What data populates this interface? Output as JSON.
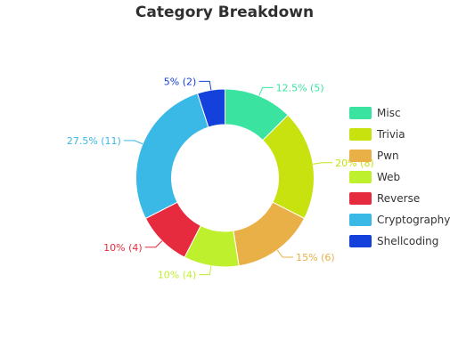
{
  "chart_data": {
    "type": "pie",
    "title": "Category Breakdown",
    "hole": 0.6,
    "slices": [
      {
        "label": "Misc",
        "value": 5,
        "percent": "12.5%",
        "color": "#3ae4a0"
      },
      {
        "label": "Trivia",
        "value": 8,
        "percent": "20%",
        "color": "#c8e210"
      },
      {
        "label": "Pwn",
        "value": 6,
        "percent": "15%",
        "color": "#e8b046"
      },
      {
        "label": "Web",
        "value": 4,
        "percent": "10%",
        "color": "#bff02e"
      },
      {
        "label": "Reverse",
        "value": 4,
        "percent": "10%",
        "color": "#e62b3e"
      },
      {
        "label": "Cryptography",
        "value": 11,
        "percent": "27.5%",
        "color": "#3ab8e6"
      },
      {
        "label": "Shellcoding",
        "value": 2,
        "percent": "5%",
        "color": "#1440dc"
      }
    ],
    "legend_position": "right"
  }
}
